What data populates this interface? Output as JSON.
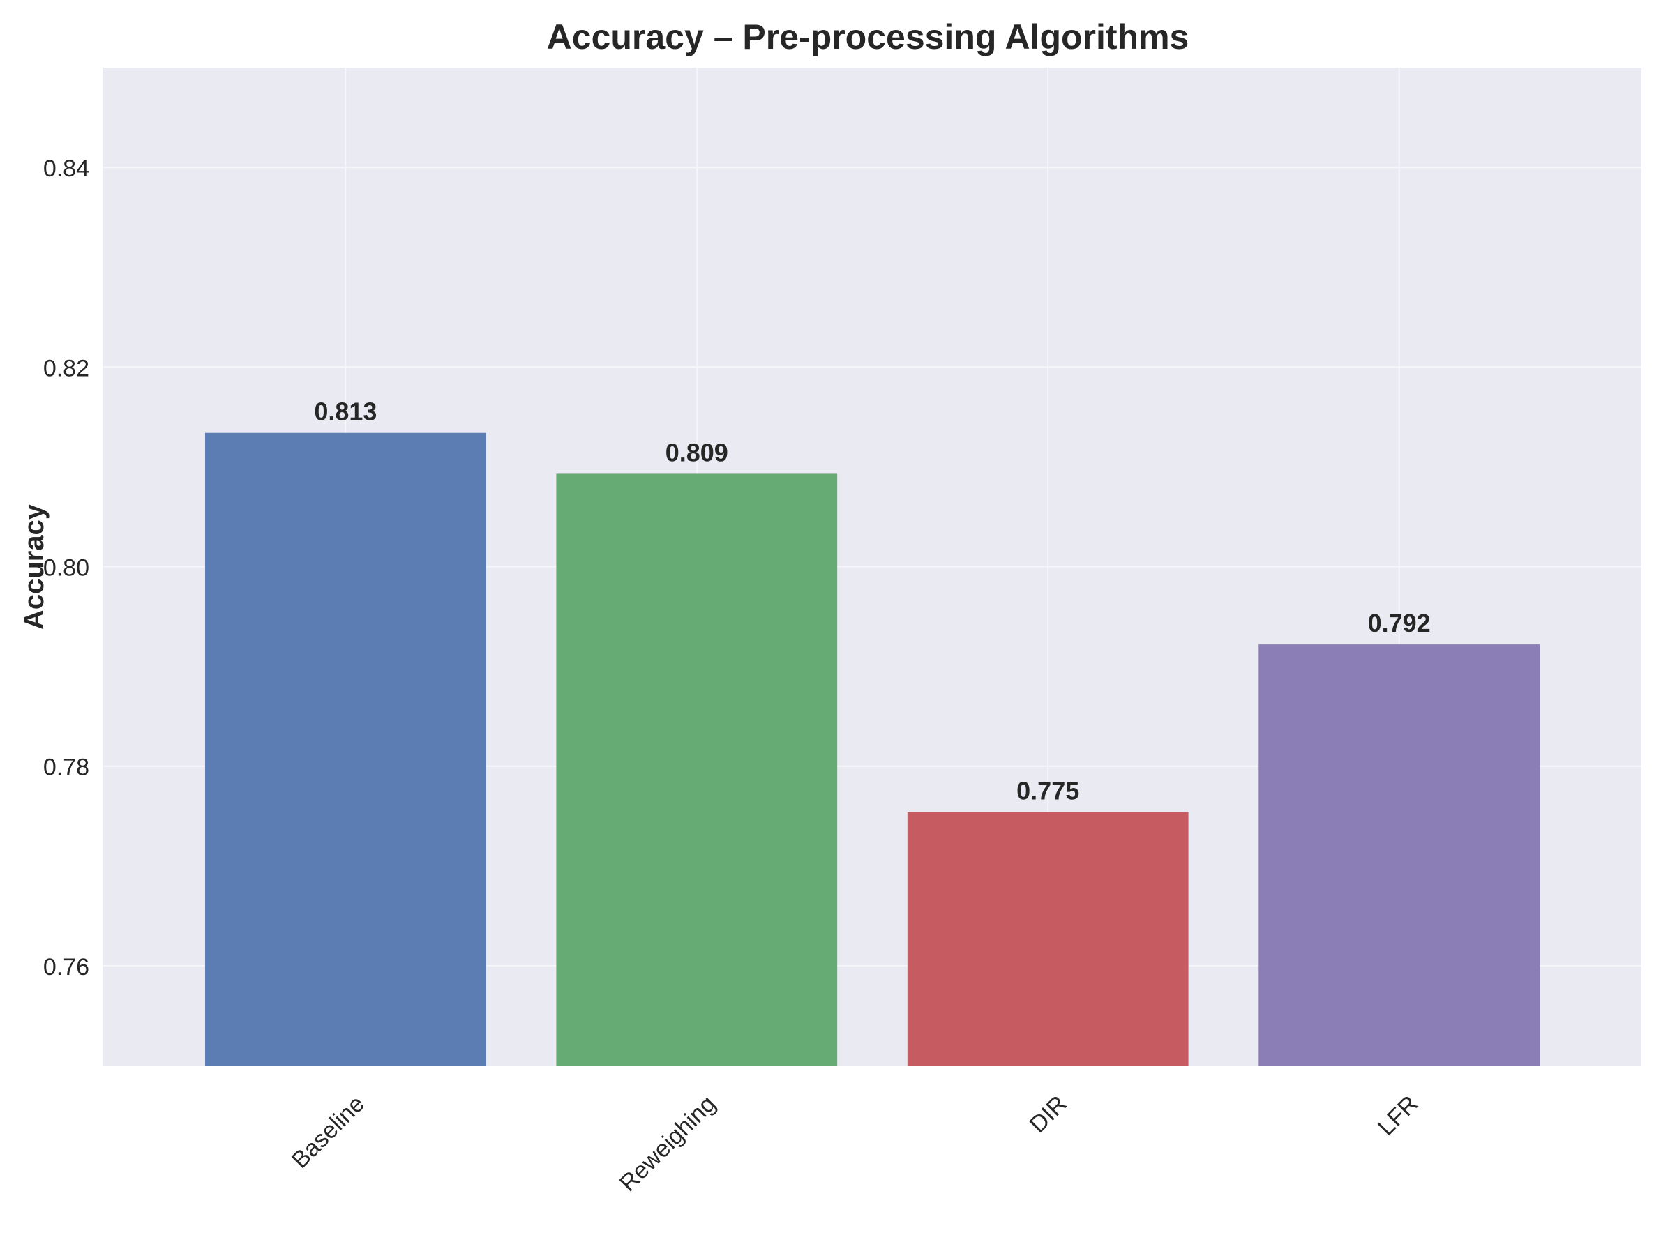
{
  "chart_data": {
    "type": "bar",
    "title": "Accuracy – Pre-processing Algorithms",
    "xlabel": "",
    "ylabel": "Accuracy",
    "categories": [
      "Baseline",
      "Reweighing",
      "DIR",
      "LFR"
    ],
    "values": [
      0.8134,
      0.8093,
      0.7754,
      0.7922
    ],
    "data_labels": [
      "0.813",
      "0.809",
      "0.775",
      "0.792"
    ],
    "colors": [
      "#5b7db3",
      "#66ab74",
      "#c65c61",
      "#8b7db5"
    ],
    "ylim": [
      0.75,
      0.85
    ],
    "yticks": [
      0.76,
      0.78,
      0.8,
      0.82,
      0.84
    ],
    "ytick_labels": [
      "0.76",
      "0.78",
      "0.80",
      "0.82",
      "0.84"
    ],
    "grid": true,
    "legend": "none",
    "style": {
      "plot_background": "#eaeaf2",
      "grid_color": "#f6f6fa",
      "text_color": "#262626"
    }
  }
}
